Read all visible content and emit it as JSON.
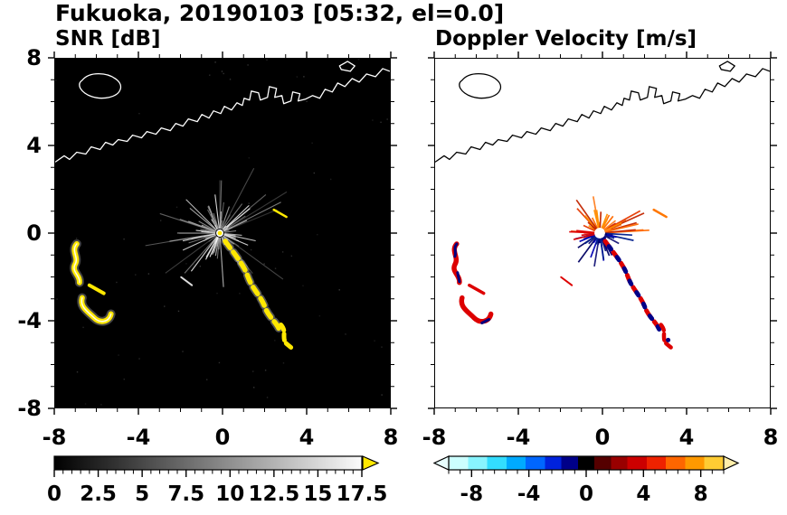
{
  "title": "Fukuoka, 20190103 [05:32, el=0.0]",
  "panels": {
    "snr": {
      "title": "SNR [dB]",
      "colorbar": {
        "min": 0,
        "max": 17.5,
        "minor_step": 0.5,
        "tick_values": [
          0,
          2.5,
          5,
          7.5,
          10,
          12.5,
          15,
          17.5
        ],
        "tick_labels": [
          "0",
          "2.5",
          "5",
          "7.5",
          "10",
          "12.5",
          "15",
          "17.5"
        ],
        "colormap": "grayscale (black to white)",
        "overflow_arrow_color": "#ffe800"
      }
    },
    "doppler": {
      "title": "Doppler Velocity [m/s]",
      "colorbar": {
        "min": -9.6,
        "max": 9.6,
        "minor_step": 0.8,
        "tick_values": [
          -8,
          -4,
          0,
          4,
          8
        ],
        "tick_labels": [
          "-8",
          "-4",
          "0",
          "4",
          "8"
        ],
        "colormap": "diverging cyan-blue-black-red-orange-yellow",
        "underflow_arrow_color": "#e8ffff",
        "overflow_arrow_color": "#ffeeaa"
      }
    }
  },
  "axes": {
    "xlim": [
      -8,
      8
    ],
    "ylim": [
      -8,
      8
    ],
    "x_tick_labels": [
      "-8",
      "-4",
      "0",
      "4",
      "8"
    ],
    "y_tick_labels": [
      "8",
      "4",
      "0",
      "-4",
      "-8"
    ],
    "major_tick_step": 4,
    "minor_tick_step": 1
  },
  "chart_data": [
    {
      "type": "heatmap",
      "title": "SNR [dB]",
      "xlim": [
        -8,
        8
      ],
      "ylim": [
        -8,
        8
      ],
      "background": "#000000",
      "colorbar_ticks": [
        0,
        2.5,
        5,
        7.5,
        10,
        12.5,
        15,
        17.5
      ],
      "features": {
        "radar_location_xy": [
          0,
          0
        ],
        "clutter": "grayscale radial streaks centered on the radar at the origin, radius about 2.5 axis units, brightest point at center",
        "echoes": [
          {
            "name": "arc-echo",
            "color": "#ffe800",
            "path_xy": [
              [
                0.2,
                -0.4
              ],
              [
                1.3,
                -2.0
              ],
              [
                2.0,
                -3.3
              ],
              [
                2.7,
                -4.4
              ]
            ]
          },
          {
            "name": "west-echo-1",
            "color": "#ffe800",
            "path_xy": [
              [
                -7.0,
                -0.5
              ],
              [
                -6.9,
                -1.4
              ],
              [
                -6.8,
                -2.3
              ]
            ]
          },
          {
            "name": "west-echo-2",
            "color": "#ffe800",
            "path_xy": [
              [
                -6.7,
                -3.0
              ],
              [
                -6.1,
                -3.8
              ],
              [
                -5.3,
                -3.7
              ]
            ]
          }
        ],
        "coastline": "white coastline across upper third with harbor structures and an island at top-left"
      }
    },
    {
      "type": "heatmap",
      "title": "Doppler Velocity [m/s]",
      "xlim": [
        -8,
        8
      ],
      "ylim": [
        -8,
        8
      ],
      "background": "#ffffff",
      "colorbar_ticks": [
        -8,
        -4,
        0,
        4,
        8
      ],
      "features": {
        "radar_location_xy": [
          0,
          0
        ],
        "clutter": "orange/red streaks (positive velocity) fan upward from radar; dark blue streaks (negative velocity) fan downward; red streak toward the west; white gap at exact center",
        "echoes": [
          {
            "name": "arc-echo",
            "colors": [
              "#dd0000",
              "#000080"
            ],
            "path_xy": [
              [
                0.2,
                -0.4
              ],
              [
                1.3,
                -2.0
              ],
              [
                2.0,
                -3.3
              ],
              [
                2.7,
                -4.4
              ]
            ]
          },
          {
            "name": "west-echo-1",
            "colors": [
              "#dd0000",
              "#000080"
            ],
            "path_xy": [
              [
                -7.0,
                -0.5
              ],
              [
                -6.9,
                -1.4
              ],
              [
                -6.8,
                -2.3
              ]
            ]
          },
          {
            "name": "west-echo-2",
            "colors": [
              "#dd0000",
              "#000080"
            ],
            "path_xy": [
              [
                -6.7,
                -3.0
              ],
              [
                -6.1,
                -3.8
              ],
              [
                -5.3,
                -3.7
              ]
            ]
          }
        ],
        "coastline": "black coastline, same shape as SNR panel"
      }
    }
  ]
}
